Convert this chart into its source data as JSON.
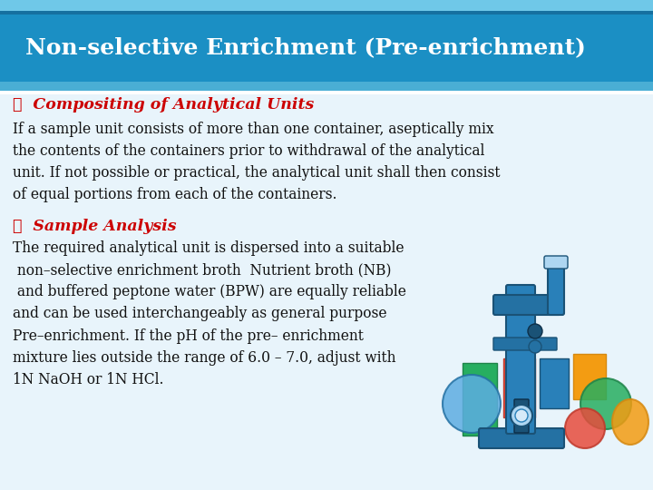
{
  "title": "Non-selective Enrichment (Pre-enrichment)",
  "title_color": "#FFFFFF",
  "title_bg_color": "#1B8FC4",
  "title_bg_dark": "#1570A0",
  "stripe_top_color": "#6FC8E8",
  "stripe_bottom_color": "#4AAED4",
  "body_bg_color": "#E8F4FB",
  "bullet1_label": "❖  Compositing of Analytical Units",
  "bullet1_color": "#CC0000",
  "bullet2_label": "❖  Sample Analysis",
  "bullet2_color": "#CC0000",
  "body_text1": "If a sample unit consists of more than one container, aseptically mix\nthe contents of the containers prior to withdrawal of the analytical\nunit. If not possible or practical, the analytical unit shall then consist\nof equal portions from each of the containers.",
  "body_text2": "The required analytical unit is dispersed into a suitable\n non–selective enrichment broth  Nutrient broth (NB)\n and buffered peptone water (BPW) are equally reliable\nand can be used interchangeably as general purpose\nPre–enrichment. If the pH of the pre– enrichment\nmixture lies outside the range of 6.0 – 7.0, adjust with\n1N NaOH or 1N HCl.",
  "text_color": "#111111",
  "font_family": "DejaVu Serif",
  "fig_bg_color": "#E8F4FB"
}
